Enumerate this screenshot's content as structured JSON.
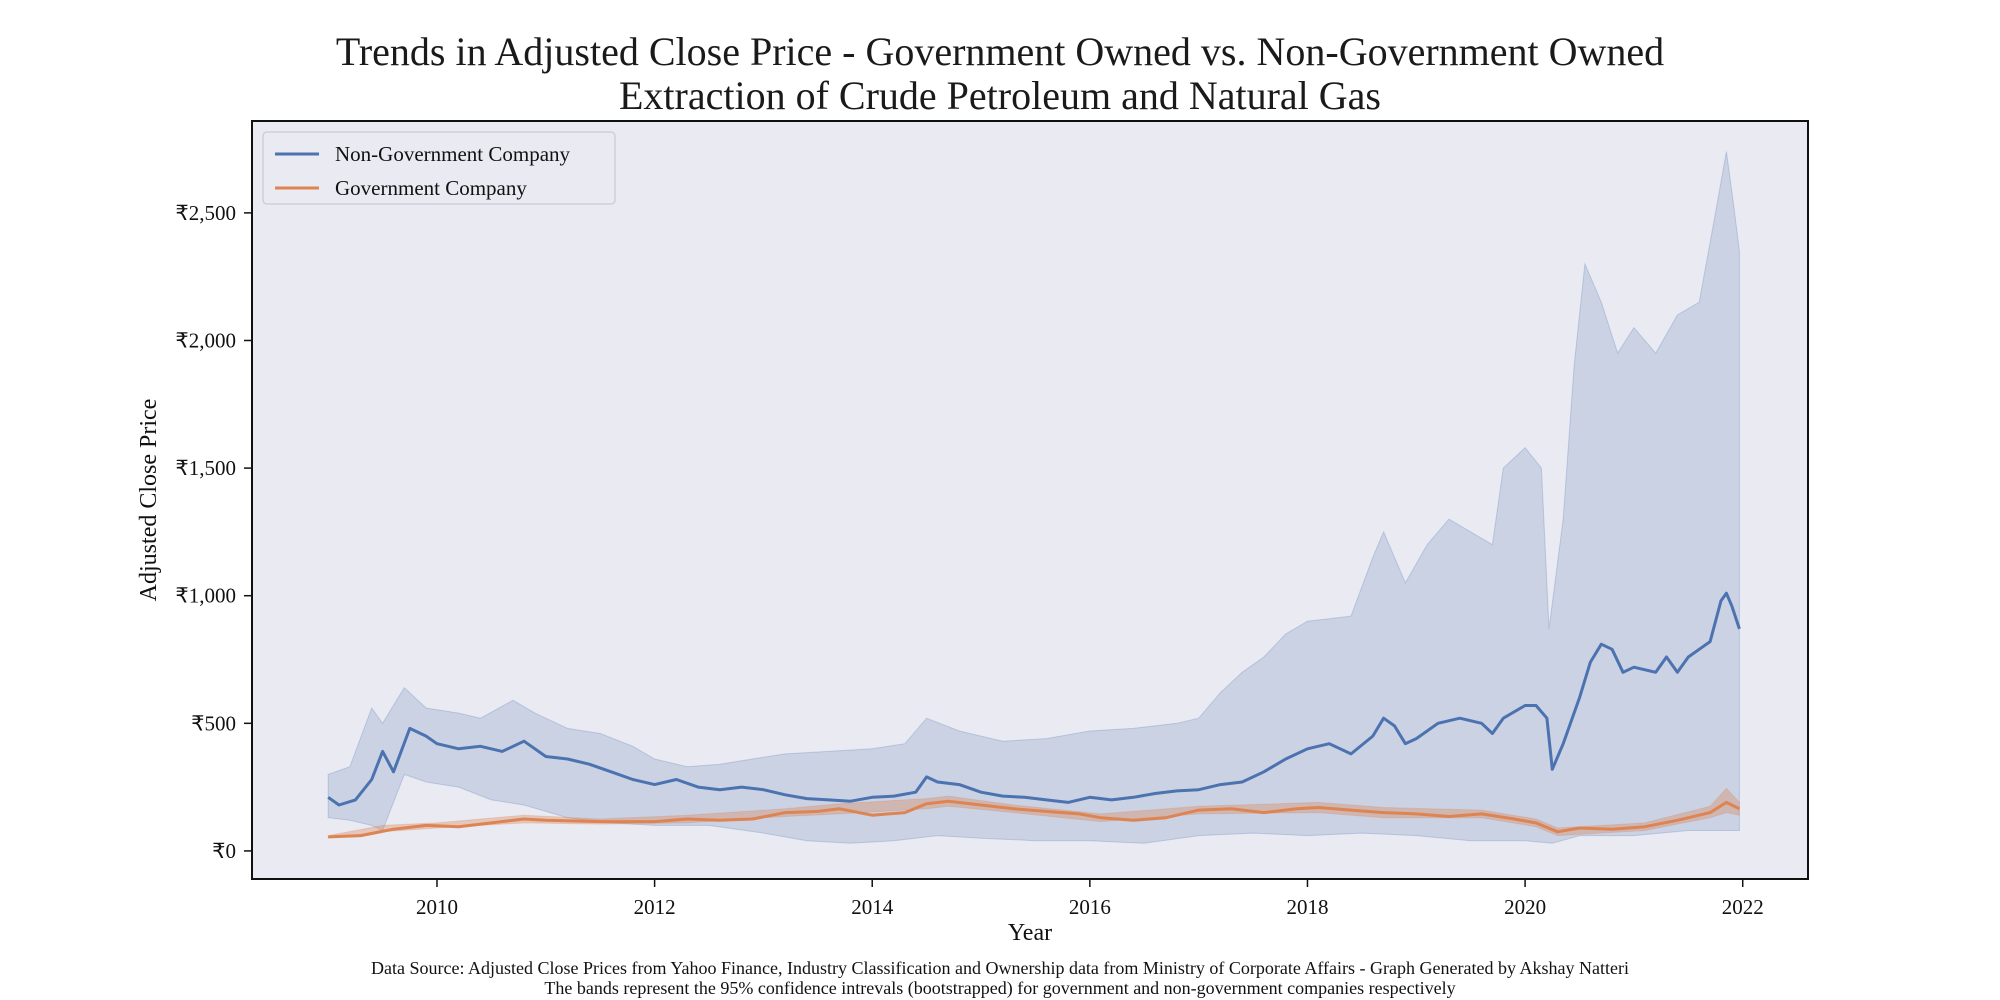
{
  "chart_data": {
    "type": "line",
    "title_line1": "Trends in Adjusted Close Price - Government Owned vs. Non-Government Owned",
    "title_line2": "Extraction of Crude Petroleum and Natural Gas",
    "xlabel": "Year",
    "ylabel": "Adjusted Close Price",
    "xlim": [
      2008.3,
      2022.6
    ],
    "ylim": [
      -110,
      2860
    ],
    "x_ticks": [
      2010,
      2012,
      2014,
      2016,
      2018,
      2020,
      2022
    ],
    "y_ticks": [
      {
        "value": 0,
        "label": "₹0"
      },
      {
        "value": 500,
        "label": "₹500"
      },
      {
        "value": 1000,
        "label": "₹1,000"
      },
      {
        "value": 1500,
        "label": "₹1,500"
      },
      {
        "value": 2000,
        "label": "₹2,000"
      },
      {
        "value": 2500,
        "label": "₹2,500"
      }
    ],
    "grid": false,
    "legend_position": "top-left",
    "plot_background": "#eaeaf2",
    "series": [
      {
        "name": "Non-Government Company",
        "color": "#4c72b0",
        "band_color": "#4c72b0",
        "points": [
          [
            2009.0,
            210
          ],
          [
            2009.1,
            180
          ],
          [
            2009.25,
            200
          ],
          [
            2009.4,
            280
          ],
          [
            2009.5,
            390
          ],
          [
            2009.6,
            310
          ],
          [
            2009.75,
            480
          ],
          [
            2009.9,
            450
          ],
          [
            2010.0,
            420
          ],
          [
            2010.2,
            400
          ],
          [
            2010.4,
            410
          ],
          [
            2010.6,
            390
          ],
          [
            2010.8,
            430
          ],
          [
            2010.9,
            400
          ],
          [
            2011.0,
            370
          ],
          [
            2011.2,
            360
          ],
          [
            2011.4,
            340
          ],
          [
            2011.6,
            310
          ],
          [
            2011.8,
            280
          ],
          [
            2012.0,
            260
          ],
          [
            2012.2,
            280
          ],
          [
            2012.4,
            250
          ],
          [
            2012.6,
            240
          ],
          [
            2012.8,
            250
          ],
          [
            2013.0,
            240
          ],
          [
            2013.2,
            220
          ],
          [
            2013.4,
            205
          ],
          [
            2013.6,
            200
          ],
          [
            2013.8,
            195
          ],
          [
            2014.0,
            210
          ],
          [
            2014.2,
            215
          ],
          [
            2014.4,
            230
          ],
          [
            2014.5,
            290
          ],
          [
            2014.6,
            270
          ],
          [
            2014.8,
            260
          ],
          [
            2015.0,
            230
          ],
          [
            2015.2,
            215
          ],
          [
            2015.4,
            210
          ],
          [
            2015.6,
            200
          ],
          [
            2015.8,
            190
          ],
          [
            2016.0,
            210
          ],
          [
            2016.2,
            200
          ],
          [
            2016.4,
            210
          ],
          [
            2016.6,
            225
          ],
          [
            2016.8,
            235
          ],
          [
            2017.0,
            240
          ],
          [
            2017.2,
            260
          ],
          [
            2017.4,
            270
          ],
          [
            2017.6,
            310
          ],
          [
            2017.8,
            360
          ],
          [
            2018.0,
            400
          ],
          [
            2018.2,
            420
          ],
          [
            2018.4,
            380
          ],
          [
            2018.6,
            450
          ],
          [
            2018.7,
            520
          ],
          [
            2018.8,
            490
          ],
          [
            2018.9,
            420
          ],
          [
            2019.0,
            440
          ],
          [
            2019.2,
            500
          ],
          [
            2019.4,
            520
          ],
          [
            2019.6,
            500
          ],
          [
            2019.7,
            460
          ],
          [
            2019.8,
            520
          ],
          [
            2020.0,
            570
          ],
          [
            2020.1,
            570
          ],
          [
            2020.2,
            520
          ],
          [
            2020.25,
            320
          ],
          [
            2020.35,
            420
          ],
          [
            2020.5,
            600
          ],
          [
            2020.6,
            740
          ],
          [
            2020.7,
            810
          ],
          [
            2020.8,
            790
          ],
          [
            2020.9,
            700
          ],
          [
            2021.0,
            720
          ],
          [
            2021.2,
            700
          ],
          [
            2021.3,
            760
          ],
          [
            2021.4,
            700
          ],
          [
            2021.5,
            760
          ],
          [
            2021.6,
            790
          ],
          [
            2021.7,
            820
          ],
          [
            2021.8,
            980
          ],
          [
            2021.85,
            1010
          ],
          [
            2021.9,
            960
          ],
          [
            2021.97,
            870
          ]
        ],
        "ci_upper": [
          [
            2009.0,
            300
          ],
          [
            2009.2,
            330
          ],
          [
            2009.4,
            560
          ],
          [
            2009.5,
            500
          ],
          [
            2009.7,
            640
          ],
          [
            2009.9,
            560
          ],
          [
            2010.2,
            540
          ],
          [
            2010.4,
            520
          ],
          [
            2010.7,
            590
          ],
          [
            2010.9,
            540
          ],
          [
            2011.2,
            480
          ],
          [
            2011.5,
            460
          ],
          [
            2011.8,
            410
          ],
          [
            2012.0,
            360
          ],
          [
            2012.3,
            330
          ],
          [
            2012.6,
            340
          ],
          [
            2012.9,
            360
          ],
          [
            2013.2,
            380
          ],
          [
            2013.6,
            390
          ],
          [
            2014.0,
            400
          ],
          [
            2014.3,
            420
          ],
          [
            2014.5,
            520
          ],
          [
            2014.8,
            470
          ],
          [
            2015.2,
            430
          ],
          [
            2015.6,
            440
          ],
          [
            2016.0,
            470
          ],
          [
            2016.4,
            480
          ],
          [
            2016.8,
            500
          ],
          [
            2017.0,
            520
          ],
          [
            2017.2,
            620
          ],
          [
            2017.4,
            700
          ],
          [
            2017.6,
            760
          ],
          [
            2017.8,
            850
          ],
          [
            2018.0,
            900
          ],
          [
            2018.2,
            910
          ],
          [
            2018.4,
            920
          ],
          [
            2018.6,
            1150
          ],
          [
            2018.7,
            1250
          ],
          [
            2018.9,
            1050
          ],
          [
            2019.1,
            1200
          ],
          [
            2019.3,
            1300
          ],
          [
            2019.5,
            1250
          ],
          [
            2019.7,
            1200
          ],
          [
            2019.8,
            1500
          ],
          [
            2020.0,
            1580
          ],
          [
            2020.15,
            1500
          ],
          [
            2020.22,
            870
          ],
          [
            2020.35,
            1300
          ],
          [
            2020.45,
            1900
          ],
          [
            2020.55,
            2300
          ],
          [
            2020.7,
            2150
          ],
          [
            2020.85,
            1950
          ],
          [
            2021.0,
            2050
          ],
          [
            2021.2,
            1950
          ],
          [
            2021.4,
            2100
          ],
          [
            2021.6,
            2150
          ],
          [
            2021.75,
            2500
          ],
          [
            2021.85,
            2740
          ],
          [
            2021.92,
            2520
          ],
          [
            2021.97,
            2350
          ]
        ],
        "ci_lower": [
          [
            2009.0,
            130
          ],
          [
            2009.2,
            120
          ],
          [
            2009.4,
            100
          ],
          [
            2009.5,
            80
          ],
          [
            2009.7,
            300
          ],
          [
            2009.9,
            270
          ],
          [
            2010.2,
            250
          ],
          [
            2010.5,
            200
          ],
          [
            2010.8,
            180
          ],
          [
            2011.2,
            130
          ],
          [
            2011.6,
            110
          ],
          [
            2012.0,
            100
          ],
          [
            2012.5,
            100
          ],
          [
            2013.0,
            70
          ],
          [
            2013.4,
            40
          ],
          [
            2013.8,
            30
          ],
          [
            2014.2,
            40
          ],
          [
            2014.6,
            60
          ],
          [
            2015.0,
            50
          ],
          [
            2015.5,
            40
          ],
          [
            2016.0,
            40
          ],
          [
            2016.5,
            30
          ],
          [
            2017.0,
            60
          ],
          [
            2017.5,
            70
          ],
          [
            2018.0,
            60
          ],
          [
            2018.5,
            70
          ],
          [
            2019.0,
            60
          ],
          [
            2019.5,
            40
          ],
          [
            2020.0,
            40
          ],
          [
            2020.25,
            30
          ],
          [
            2020.5,
            60
          ],
          [
            2021.0,
            60
          ],
          [
            2021.5,
            80
          ],
          [
            2021.97,
            80
          ]
        ]
      },
      {
        "name": "Government Company",
        "color": "#dd8452",
        "band_color": "#dd8452",
        "points": [
          [
            2009.0,
            55
          ],
          [
            2009.3,
            60
          ],
          [
            2009.6,
            85
          ],
          [
            2009.9,
            100
          ],
          [
            2010.2,
            95
          ],
          [
            2010.5,
            110
          ],
          [
            2010.8,
            125
          ],
          [
            2011.0,
            120
          ],
          [
            2011.5,
            115
          ],
          [
            2012.0,
            115
          ],
          [
            2012.3,
            125
          ],
          [
            2012.6,
            120
          ],
          [
            2012.9,
            125
          ],
          [
            2013.2,
            150
          ],
          [
            2013.5,
            155
          ],
          [
            2013.7,
            165
          ],
          [
            2014.0,
            140
          ],
          [
            2014.3,
            150
          ],
          [
            2014.5,
            185
          ],
          [
            2014.7,
            195
          ],
          [
            2015.0,
            180
          ],
          [
            2015.3,
            165
          ],
          [
            2015.6,
            155
          ],
          [
            2015.9,
            145
          ],
          [
            2016.1,
            130
          ],
          [
            2016.4,
            120
          ],
          [
            2016.7,
            130
          ],
          [
            2017.0,
            160
          ],
          [
            2017.3,
            165
          ],
          [
            2017.6,
            150
          ],
          [
            2017.9,
            165
          ],
          [
            2018.1,
            170
          ],
          [
            2018.4,
            160
          ],
          [
            2018.7,
            150
          ],
          [
            2019.0,
            145
          ],
          [
            2019.3,
            135
          ],
          [
            2019.6,
            145
          ],
          [
            2019.9,
            125
          ],
          [
            2020.1,
            110
          ],
          [
            2020.3,
            75
          ],
          [
            2020.5,
            90
          ],
          [
            2020.8,
            85
          ],
          [
            2021.1,
            95
          ],
          [
            2021.4,
            120
          ],
          [
            2021.7,
            150
          ],
          [
            2021.85,
            190
          ],
          [
            2021.97,
            165
          ]
        ],
        "ci_upper": [
          [
            2009.0,
            60
          ],
          [
            2009.5,
            100
          ],
          [
            2010.0,
            110
          ],
          [
            2010.8,
            140
          ],
          [
            2011.5,
            125
          ],
          [
            2012.3,
            140
          ],
          [
            2013.2,
            165
          ],
          [
            2013.7,
            185
          ],
          [
            2014.5,
            205
          ],
          [
            2014.7,
            215
          ],
          [
            2015.3,
            180
          ],
          [
            2016.1,
            145
          ],
          [
            2017.0,
            175
          ],
          [
            2018.1,
            190
          ],
          [
            2018.7,
            170
          ],
          [
            2019.6,
            160
          ],
          [
            2020.1,
            125
          ],
          [
            2020.3,
            90
          ],
          [
            2021.1,
            110
          ],
          [
            2021.7,
            175
          ],
          [
            2021.85,
            245
          ],
          [
            2021.97,
            190
          ]
        ],
        "ci_lower": [
          [
            2009.0,
            50
          ],
          [
            2009.5,
            75
          ],
          [
            2010.0,
            90
          ],
          [
            2010.8,
            110
          ],
          [
            2011.5,
            105
          ],
          [
            2012.3,
            110
          ],
          [
            2013.2,
            135
          ],
          [
            2013.7,
            145
          ],
          [
            2014.5,
            165
          ],
          [
            2014.7,
            175
          ],
          [
            2015.3,
            150
          ],
          [
            2016.1,
            115
          ],
          [
            2017.0,
            145
          ],
          [
            2018.1,
            150
          ],
          [
            2018.7,
            130
          ],
          [
            2019.6,
            130
          ],
          [
            2020.1,
            95
          ],
          [
            2020.3,
            60
          ],
          [
            2021.1,
            80
          ],
          [
            2021.7,
            130
          ],
          [
            2021.85,
            150
          ],
          [
            2021.97,
            140
          ]
        ]
      }
    ]
  },
  "caption_line1": "Data Source: Adjusted Close Prices from Yahoo Finance, Industry Classification and Ownership data from Ministry of Corporate Affairs  - Graph Generated by Akshay Natteri",
  "caption_line2": "The bands represent the 95% confidence intrevals (bootstrapped) for government and non-government companies respectively"
}
